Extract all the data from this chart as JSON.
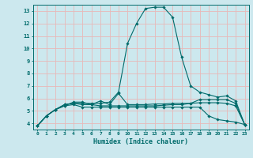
{
  "xlabel": "Humidex (Indice chaleur)",
  "background_color": "#cce8ee",
  "grid_color": "#e8b8b8",
  "line_color": "#006b6b",
  "axis_color": "#006b6b",
  "xlim": [
    -0.5,
    23.5
  ],
  "ylim": [
    3.5,
    13.5
  ],
  "xtick_labels": [
    "0",
    "1",
    "2",
    "3",
    "4",
    "5",
    "6",
    "7",
    "8",
    "9",
    "10",
    "11",
    "12",
    "13",
    "14",
    "15",
    "16",
    "17",
    "18",
    "19",
    "20",
    "21",
    "22",
    "23"
  ],
  "ytick_labels": [
    "4",
    "5",
    "6",
    "7",
    "8",
    "9",
    "10",
    "11",
    "12",
    "13"
  ],
  "ytick_vals": [
    4,
    5,
    6,
    7,
    8,
    9,
    10,
    11,
    12,
    13
  ],
  "series": [
    [
      3.8,
      4.6,
      5.1,
      5.5,
      5.6,
      5.6,
      5.6,
      5.6,
      5.7,
      6.5,
      10.4,
      12.0,
      13.2,
      13.3,
      13.3,
      12.5,
      9.3,
      7.0,
      6.5,
      6.3,
      6.1,
      6.2,
      5.8,
      3.9
    ],
    [
      3.8,
      4.6,
      5.1,
      5.5,
      5.6,
      5.5,
      5.5,
      5.8,
      5.5,
      6.4,
      5.5,
      5.5,
      5.5,
      5.55,
      5.55,
      5.6,
      5.6,
      5.6,
      5.65,
      5.65,
      5.65,
      5.6,
      5.4,
      3.9
    ],
    [
      3.8,
      4.6,
      5.1,
      5.4,
      5.7,
      5.7,
      5.5,
      5.4,
      5.4,
      5.4,
      5.4,
      5.4,
      5.4,
      5.4,
      5.45,
      5.5,
      5.5,
      5.6,
      5.9,
      5.9,
      5.9,
      5.9,
      5.6,
      3.9
    ],
    [
      3.8,
      4.6,
      5.1,
      5.4,
      5.5,
      5.3,
      5.3,
      5.3,
      5.3,
      5.3,
      5.3,
      5.3,
      5.3,
      5.3,
      5.3,
      5.3,
      5.3,
      5.3,
      5.3,
      4.6,
      4.3,
      4.2,
      4.1,
      3.9
    ]
  ]
}
